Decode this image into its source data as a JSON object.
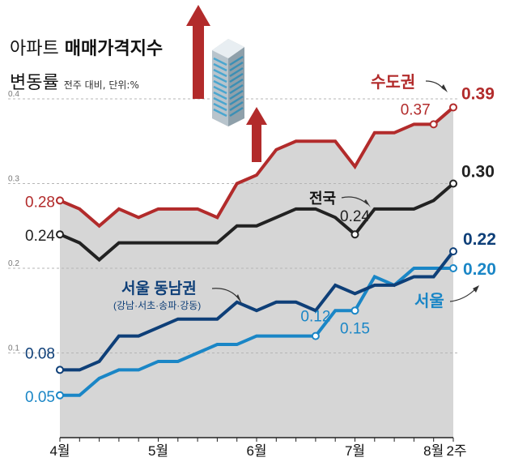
{
  "title": {
    "prefix": "아파트",
    "main": "매매가격지수",
    "line2": "변동률",
    "unit": "전주 대비, 단위:%"
  },
  "colors": {
    "capital": "#b22b2b",
    "national": "#222222",
    "gangnam": "#0e3f78",
    "seoul": "#1a86c6",
    "area": "#d6d6d6",
    "arrow": "#b22b2b"
  },
  "chart_data": {
    "type": "line",
    "title": "아파트 매매가격지수 변동률",
    "ylabel": "전주 대비, 단위:%",
    "ylim": [
      0,
      0.4
    ],
    "yticks": [
      0.1,
      0.2,
      0.3,
      0.4
    ],
    "ytick_labels": [
      "0.1",
      "0.2",
      "0.3",
      "0.4"
    ],
    "x_labels": [
      "4월",
      "5월",
      "6월",
      "7월",
      "8월",
      "2주"
    ],
    "x_label_index": [
      0,
      5,
      10,
      15,
      19,
      20
    ],
    "grid": true,
    "series": [
      {
        "name": "수도권",
        "key": "capital",
        "values": [
          0.28,
          0.27,
          0.25,
          0.27,
          0.26,
          0.27,
          0.27,
          0.27,
          0.26,
          0.3,
          0.31,
          0.34,
          0.35,
          0.35,
          0.35,
          0.32,
          0.36,
          0.36,
          0.37,
          0.37,
          0.39
        ],
        "labels": [
          {
            "i": 0,
            "text": "0.28"
          },
          {
            "i": 19,
            "text": "0.37"
          },
          {
            "i": 20,
            "text": "0.39"
          }
        ]
      },
      {
        "name": "전국",
        "key": "national",
        "values": [
          0.24,
          0.23,
          0.21,
          0.23,
          0.23,
          0.23,
          0.23,
          0.23,
          0.23,
          0.25,
          0.25,
          0.26,
          0.27,
          0.27,
          0.26,
          0.24,
          0.27,
          0.27,
          0.27,
          0.28,
          0.3
        ],
        "labels": [
          {
            "i": 0,
            "text": "0.24"
          },
          {
            "i": 15,
            "text": "0.24"
          },
          {
            "i": 20,
            "text": "0.30"
          }
        ]
      },
      {
        "name": "서울 동남권",
        "key": "gangnam",
        "values": [
          0.08,
          0.08,
          0.09,
          0.12,
          0.12,
          0.13,
          0.14,
          0.14,
          0.14,
          0.16,
          0.15,
          0.16,
          0.16,
          0.15,
          0.18,
          0.17,
          0.18,
          0.18,
          0.19,
          0.19,
          0.22
        ],
        "labels": [
          {
            "i": 0,
            "text": "0.08"
          },
          {
            "i": 20,
            "text": "0.22"
          }
        ]
      },
      {
        "name": "서울",
        "key": "seoul",
        "values": [
          0.05,
          0.05,
          0.07,
          0.08,
          0.08,
          0.09,
          0.09,
          0.1,
          0.11,
          0.11,
          0.12,
          0.12,
          0.12,
          0.12,
          0.15,
          0.15,
          0.19,
          0.18,
          0.2,
          0.2,
          0.2
        ],
        "labels": [
          {
            "i": 0,
            "text": "0.05"
          },
          {
            "i": 13,
            "text": "0.12"
          },
          {
            "i": 15,
            "text": "0.15"
          },
          {
            "i": 20,
            "text": "0.20"
          }
        ]
      }
    ],
    "annotations": [
      {
        "key": "capital",
        "text": "수도권"
      },
      {
        "key": "national",
        "text": "전국"
      },
      {
        "key": "gangnam",
        "text": "서울 동남권"
      },
      {
        "key": "gangnam_sub",
        "text": "(강남·서초·송파·강동)"
      },
      {
        "key": "seoul",
        "text": "서울"
      }
    ]
  }
}
